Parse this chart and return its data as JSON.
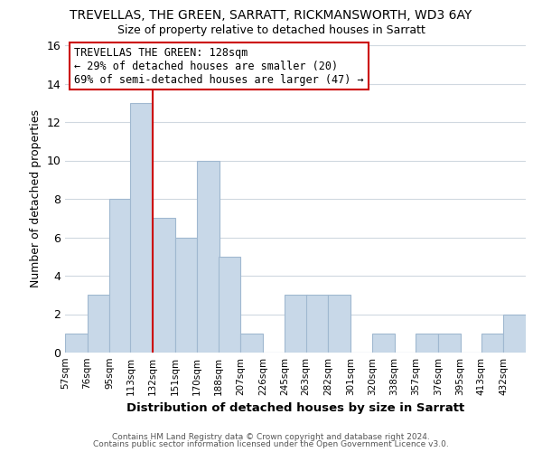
{
  "title": "TREVELLAS, THE GREEN, SARRATT, RICKMANSWORTH, WD3 6AY",
  "subtitle": "Size of property relative to detached houses in Sarratt",
  "xlabel": "Distribution of detached houses by size in Sarratt",
  "ylabel": "Number of detached properties",
  "footer_line1": "Contains HM Land Registry data © Crown copyright and database right 2024.",
  "footer_line2": "Contains public sector information licensed under the Open Government Licence v3.0.",
  "bin_labels": [
    "57sqm",
    "76sqm",
    "95sqm",
    "113sqm",
    "132sqm",
    "151sqm",
    "170sqm",
    "188sqm",
    "207sqm",
    "226sqm",
    "245sqm",
    "263sqm",
    "282sqm",
    "301sqm",
    "320sqm",
    "338sqm",
    "357sqm",
    "376sqm",
    "395sqm",
    "413sqm",
    "432sqm"
  ],
  "bin_edges": [
    57,
    76,
    95,
    113,
    132,
    151,
    170,
    188,
    207,
    226,
    245,
    263,
    282,
    301,
    320,
    338,
    357,
    376,
    395,
    413,
    432
  ],
  "counts": [
    1,
    3,
    8,
    13,
    7,
    6,
    10,
    5,
    1,
    0,
    3,
    3,
    3,
    0,
    1,
    0,
    1,
    1,
    0,
    1,
    2
  ],
  "bar_color": "#c8d8e8",
  "bar_edge_color": "#a0b8d0",
  "marker_color": "#cc0000",
  "annotation_title": "TREVELLAS THE GREEN: 128sqm",
  "annotation_line2": "← 29% of detached houses are smaller (20)",
  "annotation_line3": "69% of semi-detached houses are larger (47) →",
  "annotation_box_edge": "#cc0000",
  "ylim": [
    0,
    16
  ],
  "yticks": [
    0,
    2,
    4,
    6,
    8,
    10,
    12,
    14,
    16
  ],
  "background_color": "#ffffff",
  "grid_color": "#d0d8e0"
}
